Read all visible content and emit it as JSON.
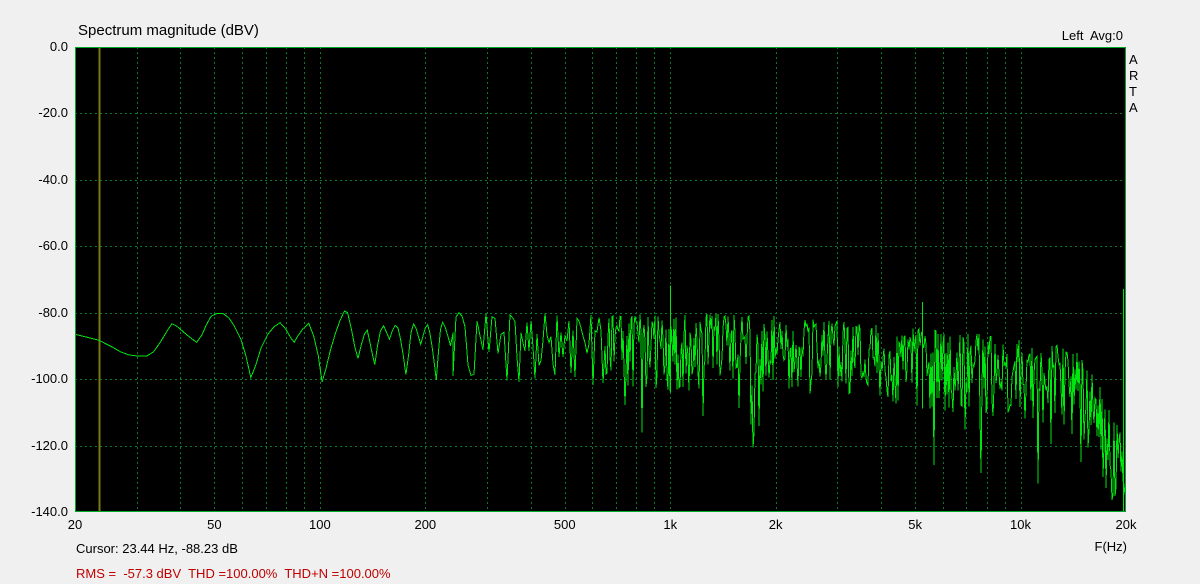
{
  "header": {
    "channel_avg": "Left  Avg:0",
    "watermark": "ARTA"
  },
  "status": {
    "cursor": "Cursor: 23.44 Hz, -88.23 dB",
    "rms_line": "RMS =  -57.3 dBV  THD =100.00%  THD+N =100.00%"
  },
  "colors": {
    "background": "#f0f0f0",
    "plot_bg": "#000000",
    "border": "#00a828",
    "grid": "#0c7a28",
    "trace": "#00e410",
    "cursor": "#7a7a10",
    "status_red": "#c00000",
    "text": "#000000"
  },
  "chart_data": {
    "type": "line",
    "title": "Spectrum magnitude (dBV)",
    "xlabel": "F(Hz)",
    "ylabel": "dBV",
    "x_scale": "log",
    "x_range": [
      20,
      20000
    ],
    "y_range": [
      -140,
      0
    ],
    "grid": true,
    "channel": "Left",
    "avg_count": 0,
    "x_ticks": [
      {
        "label": "20",
        "f": 20
      },
      {
        "label": "50",
        "f": 50
      },
      {
        "label": "100",
        "f": 100
      },
      {
        "label": "200",
        "f": 200
      },
      {
        "label": "500",
        "f": 500
      },
      {
        "label": "1k",
        "f": 1000
      },
      {
        "label": "2k",
        "f": 2000
      },
      {
        "label": "5k",
        "f": 5000
      },
      {
        "label": "10k",
        "f": 10000
      },
      {
        "label": "20k",
        "f": 20000
      }
    ],
    "x_minor": [
      30,
      40,
      60,
      70,
      80,
      90,
      300,
      400,
      600,
      700,
      800,
      900,
      3000,
      4000,
      6000,
      7000,
      8000,
      9000
    ],
    "y_ticks": [
      {
        "label": "0.0",
        "db": 0
      },
      {
        "label": "-20.0",
        "db": -20
      },
      {
        "label": "-40.0",
        "db": -40
      },
      {
        "label": "-60.0",
        "db": -60
      },
      {
        "label": "-80.0",
        "db": -80
      },
      {
        "label": "-100.0",
        "db": -100
      },
      {
        "label": "-120.0",
        "db": -120
      },
      {
        "label": "-140.0",
        "db": -140
      }
    ],
    "cursor": {
      "freq_hz": 23.44,
      "level_db": -88.23
    },
    "readouts": {
      "rms_dbv": -57.3,
      "thd_pct": 100.0,
      "thdn_pct": 100.0
    },
    "smooth_points": [
      [
        20,
        -86.5
      ],
      [
        21.7,
        -87.4
      ],
      [
        23.44,
        -88.3
      ],
      [
        25.5,
        -90.3
      ],
      [
        27,
        -91.8
      ],
      [
        28.5,
        -92.7
      ],
      [
        30,
        -93
      ],
      [
        32,
        -93.1
      ],
      [
        33.5,
        -91.8
      ],
      [
        35,
        -89
      ],
      [
        36.5,
        -85.8
      ],
      [
        37.8,
        -83.3
      ],
      [
        39,
        -84
      ],
      [
        41,
        -86
      ],
      [
        43,
        -87.8
      ],
      [
        44.5,
        -88.9
      ],
      [
        46,
        -86.8
      ],
      [
        47.5,
        -83.5
      ],
      [
        49,
        -81
      ],
      [
        51,
        -80.2
      ],
      [
        53,
        -80.3
      ],
      [
        55,
        -81.6
      ],
      [
        57,
        -84
      ],
      [
        59.5,
        -88
      ],
      [
        61.5,
        -93
      ],
      [
        63.5,
        -99.5
      ],
      [
        65.5,
        -96
      ],
      [
        68,
        -90.5
      ],
      [
        71,
        -86.5
      ],
      [
        74,
        -84.2
      ],
      [
        77,
        -83
      ],
      [
        80,
        -85
      ],
      [
        82.5,
        -87.5
      ],
      [
        84.5,
        -88.9
      ],
      [
        86.5,
        -87
      ],
      [
        89.5,
        -84.8
      ],
      [
        93,
        -83.2
      ],
      [
        96,
        -87
      ],
      [
        99,
        -93
      ],
      [
        101.5,
        -100.8
      ],
      [
        104,
        -97
      ],
      [
        107,
        -91.5
      ],
      [
        110.5,
        -86.5
      ],
      [
        114,
        -82.5
      ],
      [
        117.5,
        -79.5
      ],
      [
        120,
        -80
      ],
      [
        123,
        -85
      ],
      [
        126,
        -90.5
      ],
      [
        128.5,
        -93.8
      ],
      [
        131,
        -90
      ],
      [
        134,
        -86.5
      ],
      [
        136.5,
        -85.2
      ],
      [
        139,
        -89
      ],
      [
        141.5,
        -93
      ],
      [
        143.5,
        -95.6
      ],
      [
        146,
        -90
      ],
      [
        149,
        -85.5
      ],
      [
        152,
        -83.9
      ],
      [
        155,
        -86
      ],
      [
        158,
        -88
      ],
      [
        161,
        -85.5
      ],
      [
        164,
        -83.8
      ],
      [
        167,
        -84.5
      ],
      [
        170,
        -88
      ],
      [
        173,
        -93
      ],
      [
        176,
        -98.6
      ],
      [
        179,
        -93
      ],
      [
        182,
        -86
      ],
      [
        185,
        -83.4
      ],
      [
        188,
        -84.5
      ],
      [
        191,
        -87
      ],
      [
        194,
        -89.5
      ],
      [
        197,
        -87
      ],
      [
        200,
        -84.6
      ],
      [
        203,
        -83.6
      ],
      [
        206,
        -86
      ],
      [
        209,
        -90
      ],
      [
        212,
        -95
      ],
      [
        215,
        -100.2
      ],
      [
        218,
        -92
      ],
      [
        221,
        -85
      ],
      [
        224,
        -82.9
      ],
      [
        228,
        -84.5
      ],
      [
        232,
        -87
      ],
      [
        236,
        -90
      ],
      [
        240,
        -86
      ]
    ],
    "noise_band": [
      [
        240,
        -80,
        -100
      ],
      [
        300,
        -79.8,
        -101
      ],
      [
        400,
        -80.2,
        -102
      ],
      [
        500,
        -79.8,
        -102.5
      ],
      [
        650,
        -81,
        -103
      ],
      [
        800,
        -80.5,
        -103.5
      ],
      [
        1000,
        -81,
        -104
      ],
      [
        1300,
        -80.2,
        -104
      ],
      [
        1700,
        -80.8,
        -104.5
      ],
      [
        2100,
        -81,
        -104.5
      ],
      [
        2600,
        -82,
        -105
      ],
      [
        3400,
        -83,
        -106.5
      ],
      [
        4200,
        -84,
        -107.5
      ],
      [
        5000,
        -84.5,
        -108.5
      ],
      [
        6000,
        -85.5,
        -110
      ],
      [
        7000,
        -86,
        -111
      ],
      [
        8500,
        -87,
        -112
      ],
      [
        10000,
        -88,
        -112.5
      ],
      [
        11500,
        -89,
        -114
      ],
      [
        13000,
        -90,
        -115.5
      ],
      [
        14500,
        -91.5,
        -118
      ],
      [
        15500,
        -94,
        -121
      ],
      [
        16500,
        -100,
        -127
      ],
      [
        17500,
        -106,
        -133
      ],
      [
        18500,
        -112,
        -139
      ],
      [
        19300,
        -116,
        -140
      ],
      [
        20000,
        -120,
        -140
      ]
    ],
    "spikes": [
      [
        1000,
        -71.8
      ],
      [
        5225,
        -76.8
      ],
      [
        19650,
        -72.9
      ]
    ]
  }
}
